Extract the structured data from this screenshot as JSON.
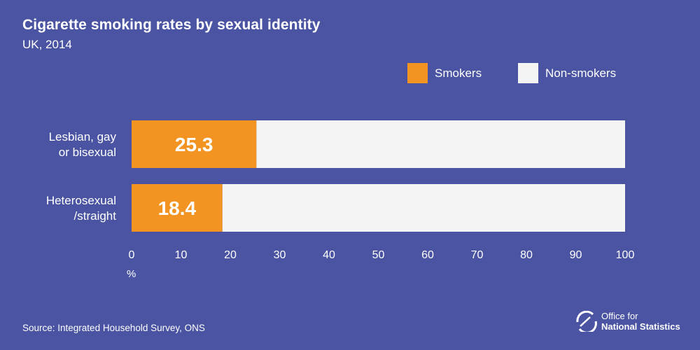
{
  "title": "Cigarette smoking rates by sexual identity",
  "subtitle": "UK, 2014",
  "legend": {
    "items": [
      {
        "label": "Smokers",
        "color": "#f39422"
      },
      {
        "label": "Non-smokers",
        "color": "#f4f4f4"
      }
    ]
  },
  "axis_unit": "%",
  "source": "Source: Integrated Household Survey, ONS",
  "logo": {
    "line1": "Office for",
    "line2": "National Statistics",
    "icon": "ons-logo-icon"
  },
  "chart_data": {
    "type": "bar",
    "orientation": "horizontal",
    "stacked": true,
    "categories": [
      [
        "Lesbian, gay",
        "or bisexual"
      ],
      [
        "Heterosexual",
        "/straight"
      ]
    ],
    "series": [
      {
        "name": "Smokers",
        "values": [
          25.3,
          18.4
        ],
        "color": "#f39422"
      },
      {
        "name": "Non-smokers",
        "values": [
          74.7,
          81.6
        ],
        "color": "#f4f4f4"
      }
    ],
    "data_labels": [
      "25.3",
      "18.4"
    ],
    "xlim": [
      0,
      100
    ],
    "xticks": [
      0,
      10,
      20,
      30,
      40,
      50,
      60,
      70,
      80,
      90,
      100
    ],
    "xlabel": "%",
    "grid": false,
    "legend_position": "top-right"
  }
}
